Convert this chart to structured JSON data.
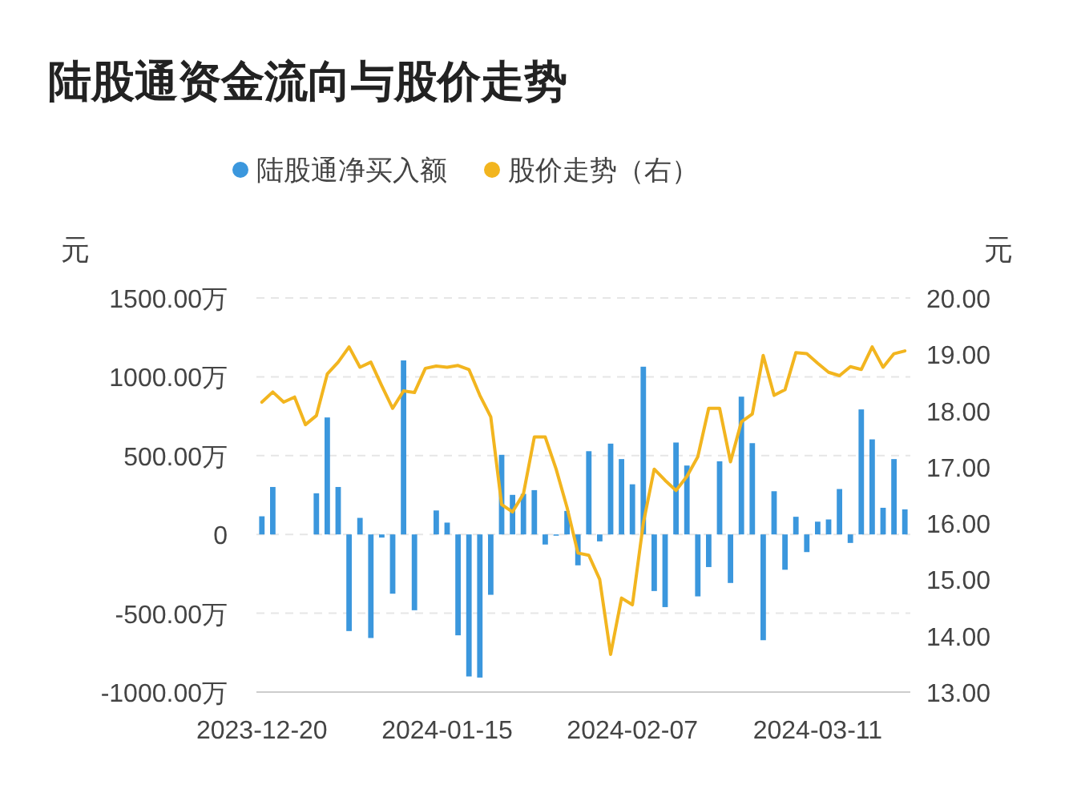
{
  "chart_data": {
    "type": "bar",
    "title": "陆股通资金流向与股价走势",
    "ylabel": "元",
    "y2label": "元",
    "categories": [
      "2023-12-20",
      null,
      null,
      null,
      null,
      null,
      null,
      null,
      null,
      null,
      null,
      null,
      null,
      null,
      null,
      null,
      null,
      "2024-01-15",
      null,
      null,
      null,
      null,
      null,
      null,
      null,
      null,
      null,
      null,
      null,
      null,
      null,
      null,
      null,
      null,
      "2024-02-07",
      null,
      null,
      null,
      null,
      null,
      null,
      null,
      null,
      null,
      null,
      null,
      null,
      null,
      null,
      null,
      null,
      "2024-03-11",
      null,
      null,
      null,
      null,
      null,
      null,
      null,
      null
    ],
    "series": [
      {
        "name": "陆股通净买入额",
        "color": "#3b97dd",
        "values": [
          115,
          301,
          null,
          null,
          null,
          261,
          742,
          301,
          -613,
          105,
          -657,
          -20,
          -376,
          1104,
          -481,
          null,
          152,
          75,
          -640,
          -901,
          -908,
          -383,
          505,
          251,
          257,
          281,
          -64,
          -8,
          149,
          -196,
          528,
          -44,
          576,
          478,
          318,
          1064,
          -359,
          -461,
          583,
          437,
          -393,
          -207,
          464,
          -308,
          874,
          579,
          -671,
          274,
          -224,
          112,
          -112,
          81,
          95,
          288,
          -54,
          793,
          603,
          169,
          478,
          159
        ]
      },
      {
        "name": "股价走势（右）",
        "type": "line",
        "axis": "y2",
        "color": "#f2b51f",
        "values": [
          18.15,
          18.33,
          18.15,
          18.24,
          17.75,
          17.91,
          18.65,
          18.86,
          19.13,
          18.77,
          18.86,
          18.44,
          18.04,
          18.35,
          18.32,
          18.75,
          18.79,
          18.77,
          18.8,
          18.73,
          18.27,
          17.89,
          16.33,
          16.2,
          16.52,
          17.53,
          17.53,
          16.96,
          16.28,
          15.47,
          15.43,
          15.0,
          13.67,
          14.67,
          14.55,
          16.0,
          16.96,
          16.76,
          16.58,
          16.83,
          17.18,
          18.04,
          18.04,
          17.09,
          17.8,
          17.94,
          18.98,
          18.27,
          18.37,
          19.03,
          19.01,
          18.84,
          18.68,
          18.62,
          18.78,
          18.73,
          19.13,
          18.77,
          19.01,
          19.06
        ]
      }
    ],
    "ylim": [
      -1000,
      1500
    ],
    "yticks": [
      {
        "value": -1000,
        "label": "-1000.00万"
      },
      {
        "value": -500,
        "label": "-500.00万"
      },
      0,
      {
        "value": 500,
        "label": "500.00万"
      },
      {
        "value": 1000,
        "label": "1000.00万"
      },
      {
        "value": 1500,
        "label": "1500.00万"
      }
    ],
    "y2lim": [
      13,
      20
    ],
    "y2ticks": [
      {
        "value": 13,
        "label": "13.00"
      },
      {
        "value": 14,
        "label": "14.00"
      },
      {
        "value": 15,
        "label": "15.00"
      },
      {
        "value": 16,
        "label": "16.00"
      },
      {
        "value": 17,
        "label": "17.00"
      },
      {
        "value": 18,
        "label": "18.00"
      },
      {
        "value": 19,
        "label": "19.00"
      },
      {
        "value": 20,
        "label": "20.00"
      }
    ],
    "grid": "y",
    "legend": "top",
    "marker": "none",
    "line_style": "solid"
  }
}
